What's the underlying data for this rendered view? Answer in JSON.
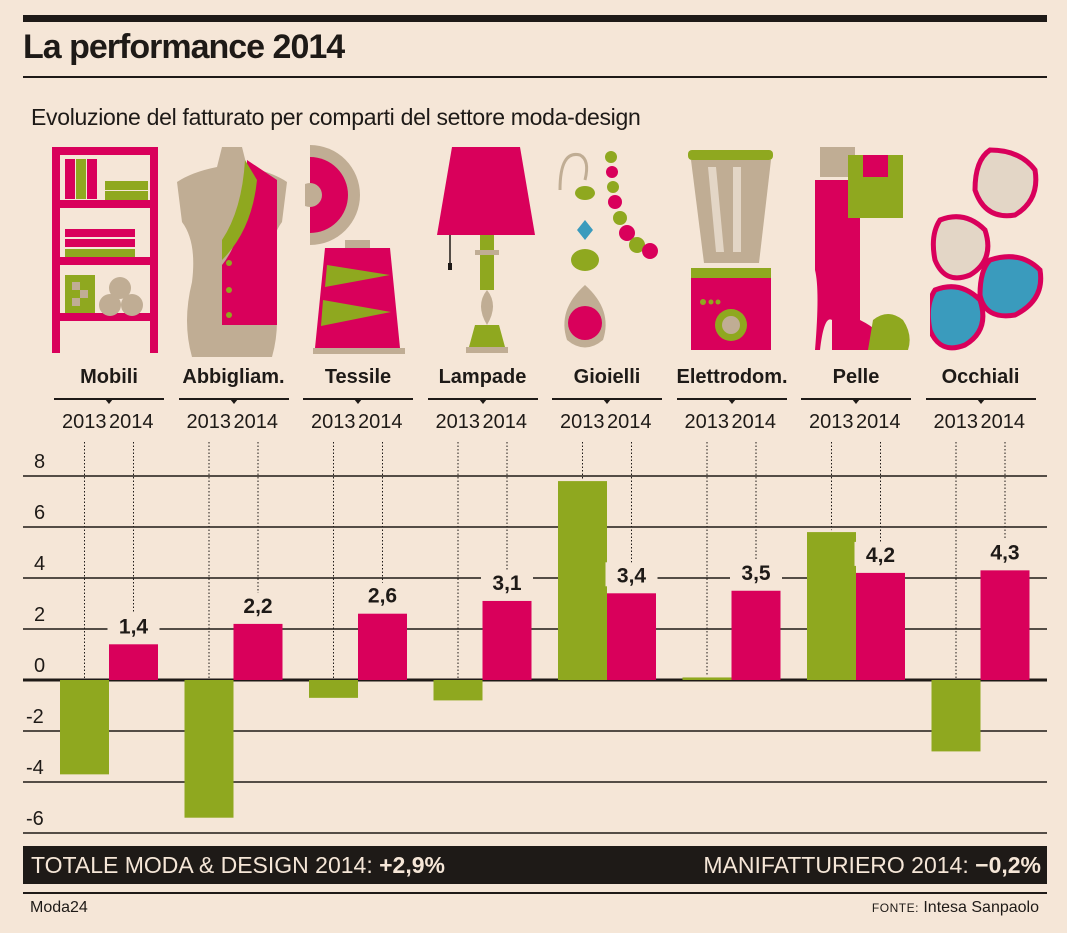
{
  "header": {
    "title": "La performance 2014",
    "subtitle": "Evoluzione del fatturato per comparti del settore moda-design"
  },
  "colors": {
    "background": "#f5e6d7",
    "series_2013": "#8fa81f",
    "series_2014": "#d9005b",
    "ink": "#1e1a17",
    "beige": "#c0ad94",
    "blue": "#3a9bbd"
  },
  "icons": [
    {
      "category": "Mobili",
      "name": "bookshelf-icon"
    },
    {
      "category": "Abbigliam.",
      "name": "dress-form-icon"
    },
    {
      "category": "Tessile",
      "name": "thread-spool-icon"
    },
    {
      "category": "Lampade",
      "name": "table-lamp-icon"
    },
    {
      "category": "Gioielli",
      "name": "jewelry-icon"
    },
    {
      "category": "Elettrodom.",
      "name": "blender-icon"
    },
    {
      "category": "Pelle",
      "name": "boot-bag-icon"
    },
    {
      "category": "Occhiali",
      "name": "glasses-icon"
    }
  ],
  "chart_data": {
    "type": "bar",
    "title": "La performance 2014",
    "subtitle": "Evoluzione del fatturato per comparti del settore moda-design",
    "categories": [
      "Mobili",
      "Abbigliam.",
      "Tessile",
      "Lampade",
      "Gioielli",
      "Elettrodom.",
      "Pelle",
      "Occhiali"
    ],
    "series": [
      {
        "name": "2013",
        "values": [
          -3.7,
          -5.4,
          -0.7,
          -0.8,
          7.8,
          0.1,
          5.8,
          -2.8
        ],
        "labeled": false
      },
      {
        "name": "2014",
        "values": [
          1.4,
          2.2,
          2.6,
          3.1,
          3.4,
          3.5,
          4.2,
          4.3
        ],
        "labels": [
          "1,4",
          "2,2",
          "2,6",
          "3,1",
          "3,4",
          "3,5",
          "4,2",
          "4,3"
        ],
        "labeled": true
      }
    ],
    "yticks": [
      8,
      6,
      4,
      2,
      0,
      -2,
      -4,
      -6
    ],
    "ylim": [
      -7,
      8
    ],
    "xlabel": "",
    "ylabel": "",
    "grid": true,
    "legend": "per-category year labels above chart"
  },
  "totals": {
    "left_label": "TOTALE MODA & DESIGN 2014: ",
    "left_value": "+2,9%",
    "right_label": "MANIFATTURIERO 2014: ",
    "right_value": "−0,2%"
  },
  "footer": {
    "brand": "Moda24",
    "source_label": "FONTE:",
    "source": " Intesa Sanpaolo"
  }
}
